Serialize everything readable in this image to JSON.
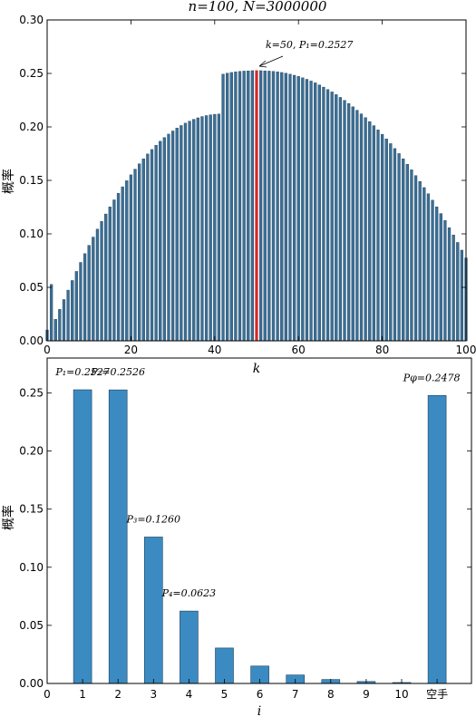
{
  "chart_data": [
    {
      "type": "bar",
      "title": "n=100, N=3000000",
      "xlabel": "k",
      "ylabel": "概率",
      "xlim": [
        0,
        100
      ],
      "ylim": [
        0,
        0.3
      ],
      "xticks": [
        "0",
        "20",
        "40",
        "60",
        "80",
        "100"
      ],
      "yticks": [
        "0.00",
        "0.05",
        "0.10",
        "0.15",
        "0.20",
        "0.25",
        "0.30"
      ],
      "grid": false,
      "bar_color": "#3a6f96",
      "highlight_color": "#d62728",
      "highlight_k": 50,
      "annotation": "k=50, P₁=0.2527",
      "k_first": 0,
      "values": [
        0.0101,
        0.0527,
        0.0201,
        0.0294,
        0.0386,
        0.0474,
        0.0564,
        0.0649,
        0.0733,
        0.0815,
        0.0893,
        0.097,
        0.1044,
        0.1116,
        0.1186,
        0.1253,
        0.1318,
        0.138,
        0.144,
        0.1497,
        0.1552,
        0.1605,
        0.1655,
        0.1702,
        0.1747,
        0.1789,
        0.1829,
        0.1866,
        0.1901,
        0.1933,
        0.1962,
        0.1989,
        0.2013,
        0.2035,
        0.2054,
        0.2071,
        0.2085,
        0.2097,
        0.2106,
        0.2113,
        0.2118,
        0.2121,
        0.2493,
        0.2502,
        0.2509,
        0.2515,
        0.2519,
        0.2522,
        0.2524,
        0.2526,
        0.2527,
        0.2526,
        0.2524,
        0.2522,
        0.2519,
        0.2515,
        0.2509,
        0.2502,
        0.2493,
        0.2483,
        0.2472,
        0.2459,
        0.2445,
        0.2429,
        0.2412,
        0.2393,
        0.2372,
        0.235,
        0.2327,
        0.2302,
        0.2276,
        0.2248,
        0.2219,
        0.2188,
        0.2156,
        0.2122,
        0.2087,
        0.205,
        0.2012,
        0.1972,
        0.1931,
        0.1888,
        0.1844,
        0.1798,
        0.1751,
        0.1702,
        0.1651,
        0.1599,
        0.1545,
        0.149,
        0.1433,
        0.1375,
        0.1315,
        0.1253,
        0.119,
        0.1125,
        0.1058,
        0.099,
        0.092,
        0.0848,
        0.0775
      ]
    },
    {
      "type": "bar",
      "title": "",
      "xlabel": "i",
      "ylabel": "概率",
      "ylim": [
        0,
        0.28
      ],
      "yticks": [
        "0.00",
        "0.05",
        "0.10",
        "0.15",
        "0.20",
        "0.25"
      ],
      "grid": false,
      "bar_color": "#3b8bc2",
      "categories": [
        "0",
        "1",
        "2",
        "3",
        "4",
        "5",
        "6",
        "7",
        "8",
        "9",
        "10",
        "空手"
      ],
      "values": [
        null,
        0.2527,
        0.2526,
        0.126,
        0.0623,
        0.0305,
        0.015,
        0.0073,
        0.0034,
        0.0017,
        0.0008,
        0.2478
      ],
      "annotations": [
        {
          "category": "1",
          "text": "P₁=0.2527"
        },
        {
          "category": "2",
          "text": "P₂=0.2526"
        },
        {
          "category": "3",
          "text": "P₃=0.1260"
        },
        {
          "category": "4",
          "text": "P₄=0.0623"
        },
        {
          "category": "空手",
          "text": "Pφ=0.2478"
        }
      ]
    }
  ]
}
